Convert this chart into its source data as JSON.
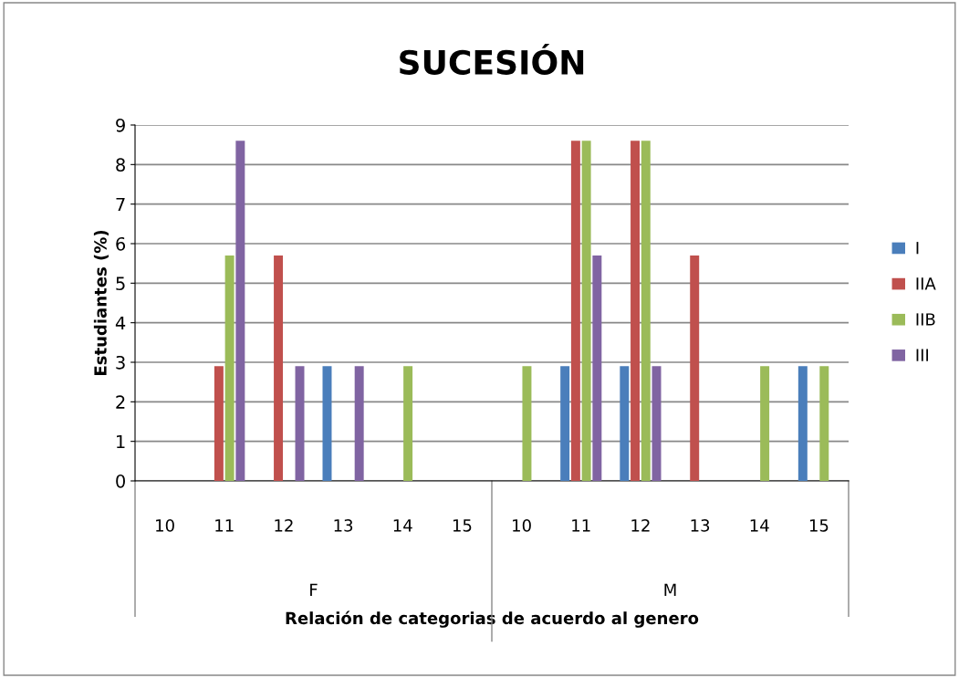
{
  "chart_data": {
    "type": "bar",
    "title": "SUCESIÓN",
    "xlabel": "Relación de categorias de acuerdo al genero",
    "ylabel": "Estudiantes (%)",
    "categories": [
      "10",
      "11",
      "12",
      "13",
      "14",
      "15",
      "10",
      "11",
      "12",
      "13",
      "14",
      "15"
    ],
    "annotations": [
      "F",
      "M"
    ],
    "series": [
      {
        "name": "I",
        "color": "#4a7ebb",
        "values": [
          0,
          0,
          0,
          2.9,
          0,
          0,
          0,
          2.9,
          2.9,
          0,
          0,
          2.9
        ]
      },
      {
        "name": "IIA",
        "color": "#c0504d",
        "values": [
          0,
          2.9,
          5.7,
          0,
          0,
          0,
          0,
          8.6,
          8.6,
          5.7,
          0,
          0
        ]
      },
      {
        "name": "IIB",
        "color": "#9bbb59",
        "values": [
          0,
          5.7,
          0,
          0,
          2.9,
          0,
          2.9,
          8.6,
          8.6,
          0,
          2.9,
          2.9
        ]
      },
      {
        "name": "III",
        "color": "#8064a2",
        "values": [
          0,
          8.6,
          2.9,
          2.9,
          0,
          0,
          0,
          5.7,
          2.9,
          0,
          0,
          0
        ]
      }
    ],
    "ylim": [
      0,
      9
    ],
    "yticks": [
      0,
      1,
      2,
      3,
      4,
      5,
      6,
      7,
      8,
      9
    ],
    "grid": "y",
    "legend": "right"
  }
}
